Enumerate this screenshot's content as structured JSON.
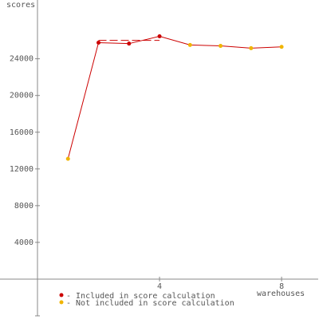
{
  "chart_data": {
    "type": "line",
    "ylabel": "scores",
    "xlabel": "warehouses",
    "x": [
      1,
      2,
      3,
      4,
      5,
      6,
      7,
      8
    ],
    "values": [
      13100,
      25750,
      25650,
      26450,
      25500,
      25400,
      25150,
      25300
    ],
    "included": [
      false,
      true,
      true,
      true,
      false,
      false,
      false,
      false
    ],
    "line_color": "#cc0000",
    "legend": [
      {
        "name": "- Included in score calculation",
        "color": "#cc0000"
      },
      {
        "name": "- Not included in score calculation",
        "color": "#f0b400"
      }
    ],
    "score_line": {
      "value": 26000,
      "x": [
        2,
        4
      ]
    },
    "xlim": [
      0,
      9.2
    ],
    "xticks": [
      4,
      8
    ],
    "ylim": [
      -4000,
      30400
    ],
    "yticks": [
      4000,
      8000,
      12000,
      16000,
      20000,
      24000
    ]
  }
}
